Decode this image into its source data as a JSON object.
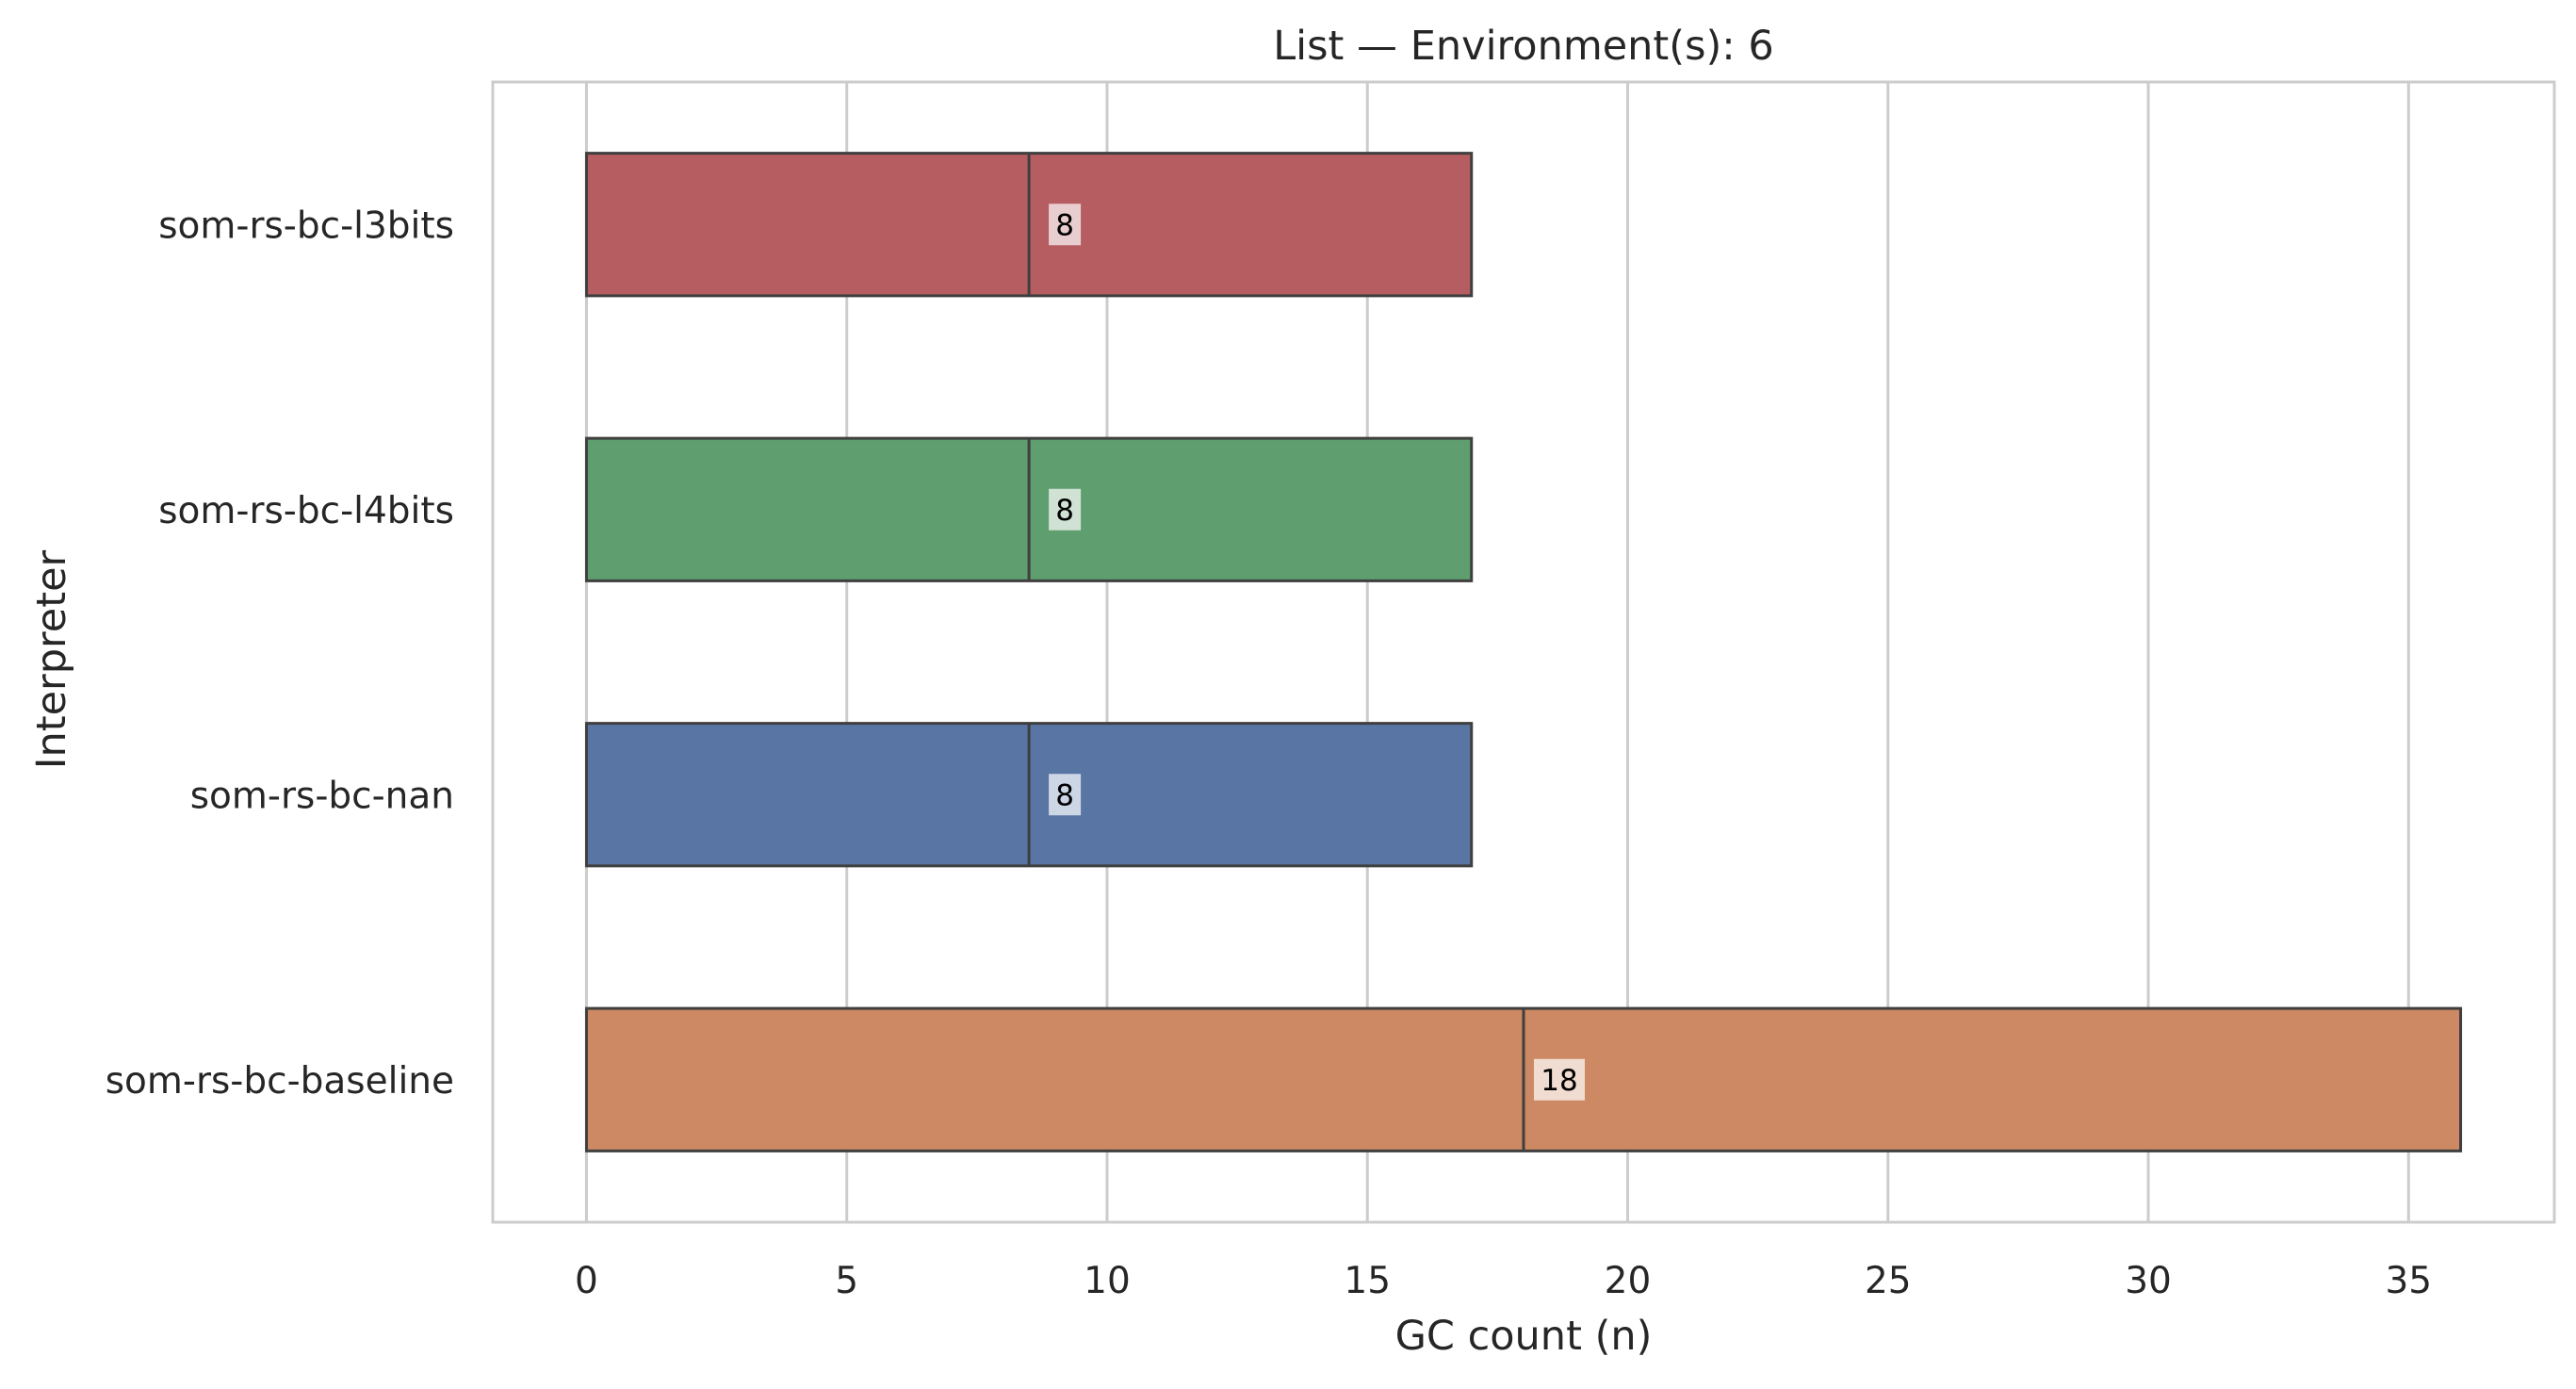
{
  "chart_data": {
    "type": "bar",
    "orientation": "horizontal",
    "title": "List — Environment(s): 6",
    "xlabel": "GC count (n)",
    "ylabel": "Interpreter",
    "categories": [
      "som-rs-bc-l3bits",
      "som-rs-bc-l4bits",
      "som-rs-bc-nan",
      "som-rs-bc-baseline"
    ],
    "values": [
      17,
      17,
      17,
      36
    ],
    "medians": [
      8.5,
      8.5,
      8.5,
      18
    ],
    "value_labels": [
      "8",
      "8",
      "8",
      "18"
    ],
    "colors": [
      "#b55d60",
      "#5f9e6e",
      "#5975a4",
      "#cc8963"
    ],
    "xlim": [
      -1.8,
      37.8
    ],
    "xticks": [
      0,
      5,
      10,
      15,
      20,
      25,
      30,
      35
    ],
    "grid": true,
    "legend": "none"
  }
}
